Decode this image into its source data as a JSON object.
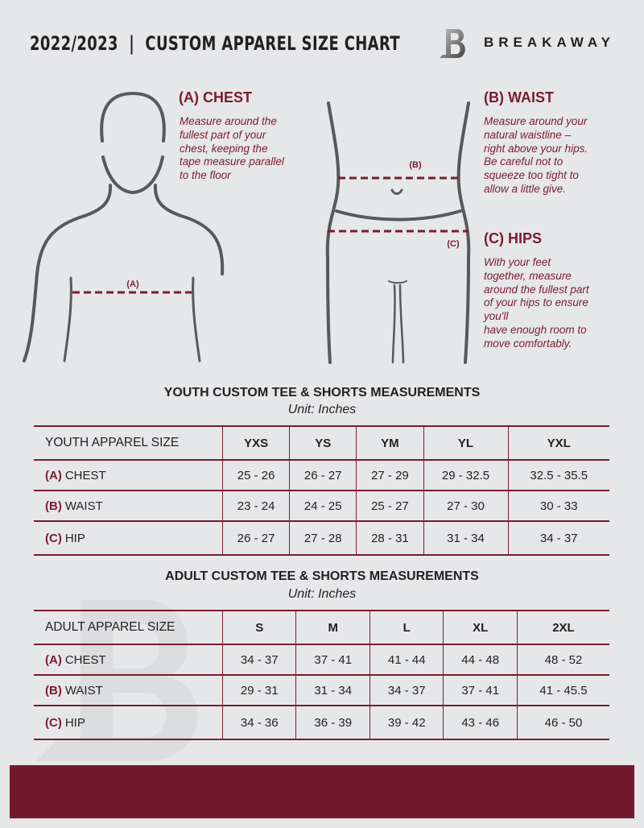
{
  "header": {
    "title": "2022/2023  |  CUSTOM APPAREL SIZE CHART",
    "brand": "BREAKAWAY",
    "logo_letter": "B"
  },
  "colors": {
    "accent": "#7a1c2e",
    "background": "#e6e7e9",
    "footer": "#721a2d"
  },
  "chest": {
    "heading": "(A) CHEST",
    "desc": [
      "Measure around the",
      "fullest part of your",
      "chest, keeping the",
      "tape measure parallel",
      "to the floor"
    ],
    "marker": "(A)"
  },
  "waist": {
    "heading": "(B) WAIST",
    "desc": [
      "Measure around your",
      "natural waistline –",
      "right above your hips.",
      "Be careful not to",
      "squeeze too tight to",
      "allow a little give."
    ],
    "marker": "(B)"
  },
  "hips": {
    "heading": "(C) HIPS",
    "desc": [
      "With your feet",
      "together, measure",
      "around the fullest part",
      "of your hips to ensure",
      "you'll",
      "have enough room to",
      "move comfortably."
    ],
    "marker": "(C)"
  },
  "youth": {
    "title": "YOUTH CUSTOM TEE & SHORTS MEASUREMENTS",
    "unit": "Unit: Inches",
    "header": [
      "YOUTH APPAREL SIZE",
      "YXS",
      "YS",
      "YM",
      "YL",
      "YXL"
    ],
    "rows": [
      {
        "tag": "(A)",
        "label": "CHEST",
        "values": [
          "25 - 26",
          "26 - 27",
          "27 - 29",
          "29 - 32.5",
          "32.5 - 35.5"
        ]
      },
      {
        "tag": "(B)",
        "label": "WAIST",
        "values": [
          "23 - 24",
          "24 - 25",
          "25 - 27",
          "27 - 30",
          "30 - 33"
        ]
      },
      {
        "tag": "(C)",
        "label": "HIP",
        "values": [
          "26 - 27",
          "27 - 28",
          "28 - 31",
          "31 - 34",
          "34 - 37"
        ]
      }
    ]
  },
  "adult": {
    "title": "ADULT CUSTOM TEE & SHORTS MEASUREMENTS",
    "unit": "Unit: Inches",
    "header": [
      "ADULT APPAREL SIZE",
      "S",
      "M",
      "L",
      "XL",
      "2XL"
    ],
    "rows": [
      {
        "tag": "(A)",
        "label": "CHEST",
        "values": [
          "34 - 37",
          "37 - 41",
          "41 - 44",
          "44 - 48",
          "48 - 52"
        ]
      },
      {
        "tag": "(B)",
        "label": "WAIST",
        "values": [
          "29 - 31",
          "31 - 34",
          "34 - 37",
          "37 - 41",
          "41 - 45.5"
        ]
      },
      {
        "tag": "(C)",
        "label": "HIP",
        "values": [
          "34 - 36",
          "36 - 39",
          "39 - 42",
          "43 - 46",
          "46 - 50"
        ]
      }
    ]
  }
}
